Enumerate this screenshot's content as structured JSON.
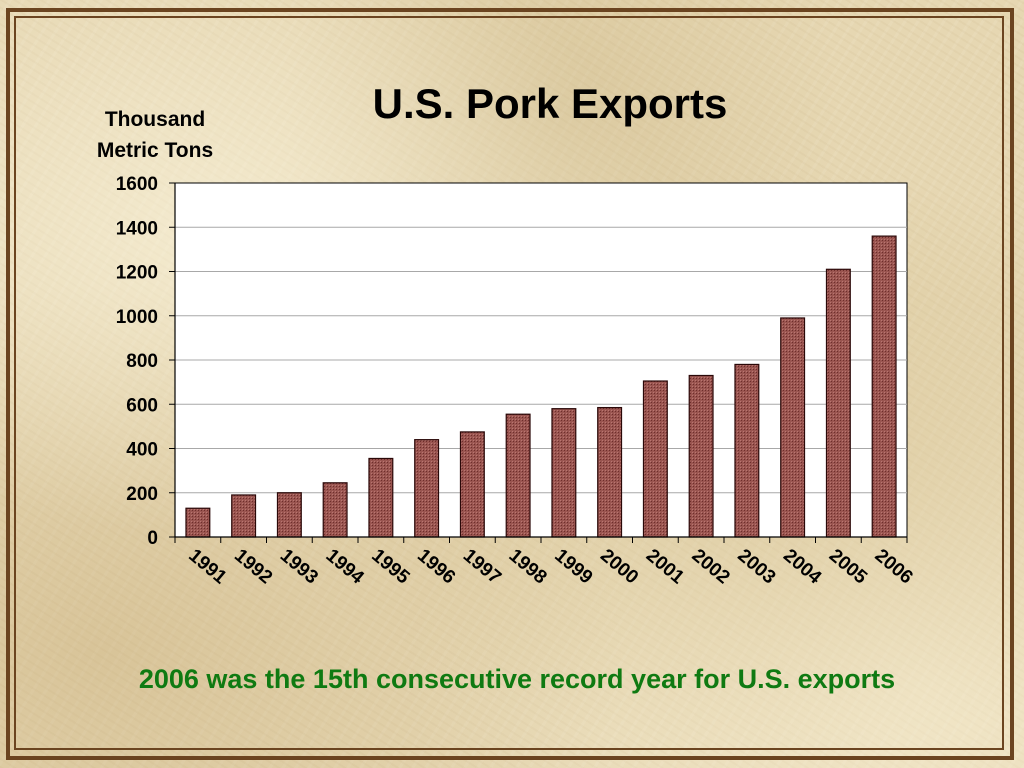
{
  "slide": {
    "caption": "2006 was the 15th consecutive record year for U.S. exports"
  },
  "colors": {
    "bar_fill": "#9a5550",
    "bar_stroke": "#2a0808",
    "caption": "#0f7a12",
    "frame": "#6b4420"
  },
  "chart_data": {
    "type": "bar",
    "title": "U.S. Pork Exports",
    "ylabel": "Thousand Metric Tons",
    "ylabel_lines": [
      "Thousand",
      "Metric Tons"
    ],
    "xlabel": "",
    "categories": [
      "1991",
      "1992",
      "1993",
      "1994",
      "1995",
      "1996",
      "1997",
      "1998",
      "1999",
      "2000",
      "2001",
      "2002",
      "2003",
      "2004",
      "2005",
      "2006"
    ],
    "values": [
      130,
      190,
      200,
      245,
      355,
      440,
      475,
      555,
      580,
      585,
      705,
      730,
      780,
      990,
      1210,
      1360
    ],
    "ylim": [
      0,
      1600
    ],
    "yticks": [
      0,
      200,
      400,
      600,
      800,
      1000,
      1200,
      1400,
      1600
    ],
    "grid": true,
    "legend": "none"
  }
}
